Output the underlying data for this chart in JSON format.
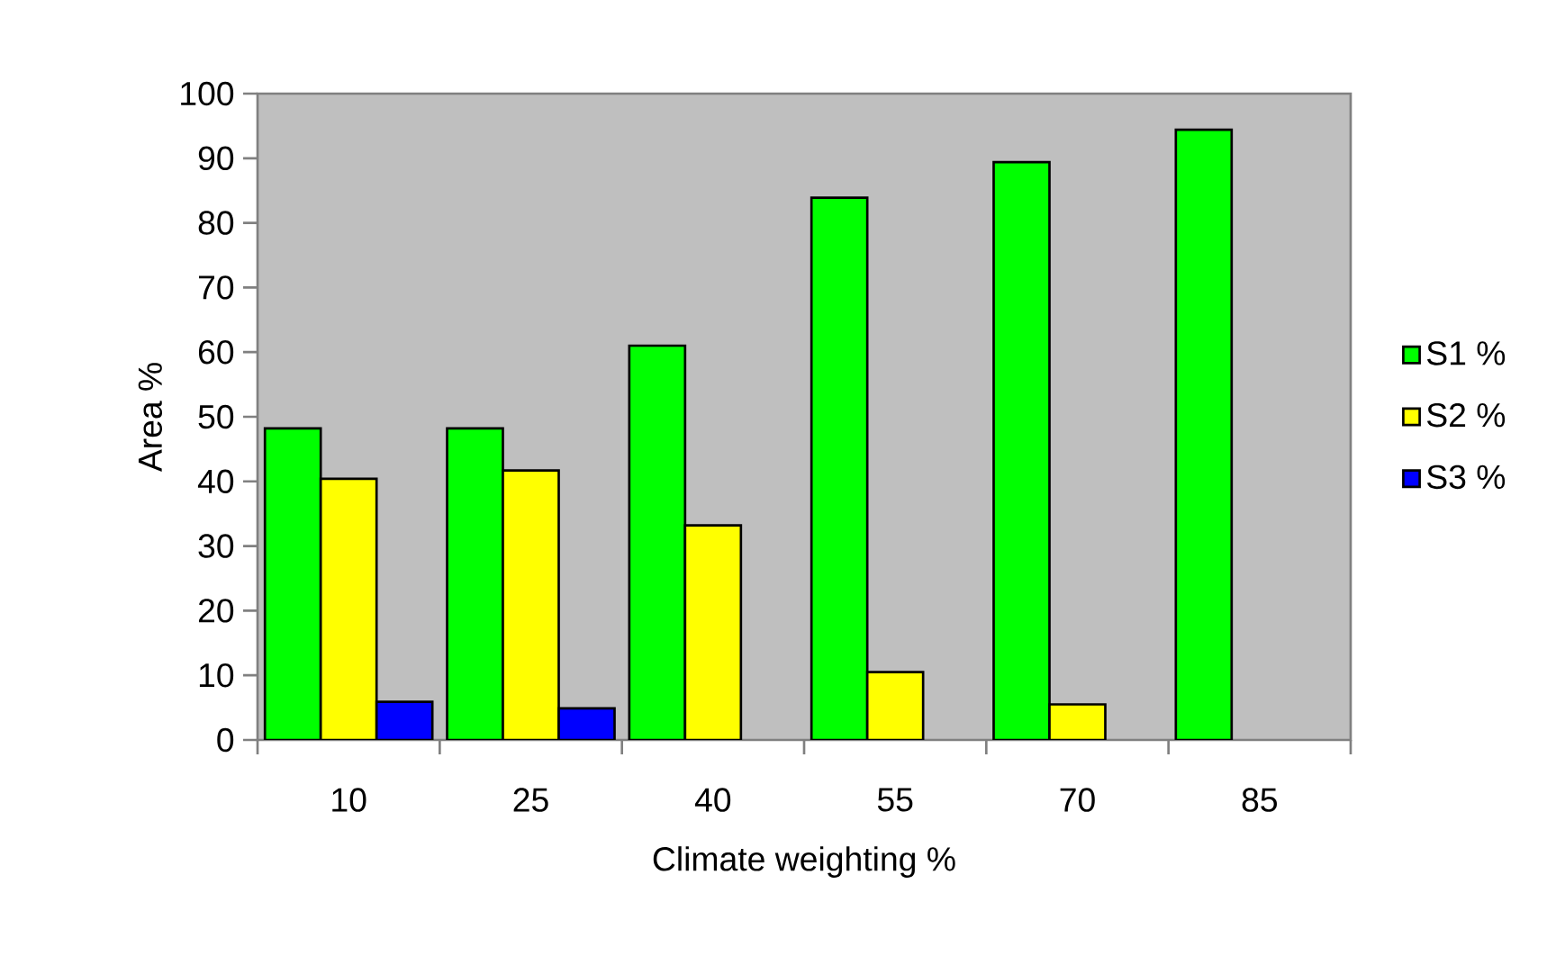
{
  "chart_data": {
    "type": "bar",
    "xlabel": "Climate weighting %",
    "ylabel": "Area %",
    "categories": [
      "10",
      "25",
      "40",
      "55",
      "70",
      "85"
    ],
    "series": [
      {
        "name": "S1 %",
        "color": "#00ff00",
        "values": [
          48.2,
          48.2,
          61.0,
          83.9,
          89.4,
          94.4
        ]
      },
      {
        "name": "S2 %",
        "color": "#ffff00",
        "values": [
          40.4,
          41.7,
          33.2,
          10.5,
          5.5,
          null
        ]
      },
      {
        "name": "S3 %",
        "color": "#0000ff",
        "values": [
          5.9,
          4.9,
          null,
          null,
          null,
          null
        ]
      }
    ],
    "ylim": [
      0,
      100
    ],
    "yticks": [
      0,
      10,
      20,
      30,
      40,
      50,
      60,
      70,
      80,
      90,
      100
    ],
    "legend": "right"
  }
}
